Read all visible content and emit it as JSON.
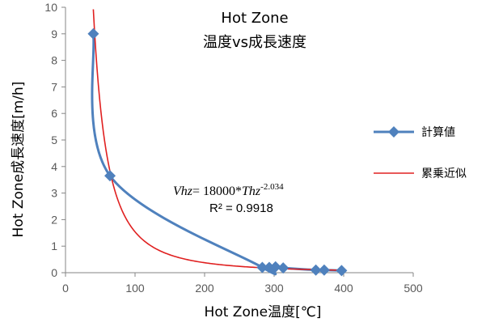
{
  "chart_data": {
    "type": "scatter",
    "title_line1": "Hot Zone",
    "title_line2": "温度vs成長速度",
    "xlabel": "Hot Zone温度[℃]",
    "ylabel": "Hot Zone成長速度[m/h]",
    "xlim": [
      0,
      500
    ],
    "ylim": [
      0,
      10
    ],
    "x_ticks": [
      "0",
      "100",
      "200",
      "300",
      "400",
      "500"
    ],
    "y_ticks": [
      "0",
      "1",
      "2",
      "3",
      "4",
      "5",
      "6",
      "7",
      "8",
      "9",
      "10"
    ],
    "grid": false,
    "legend_position": "right",
    "series": [
      {
        "name": "計算値",
        "style": "smooth-line-with-diamond-markers",
        "color": "#4f81bd",
        "x": [
          40,
          64,
          283,
          293,
          302,
          313,
          360,
          372,
          397
        ],
        "y": [
          9.0,
          3.65,
          0.2,
          0.2,
          0.22,
          0.18,
          0.1,
          0.1,
          0.08
        ]
      },
      {
        "name": "累乗近似",
        "style": "line",
        "color": "#e02020",
        "formula": "18000 * x^-2.034",
        "x_range": [
          40,
          400
        ]
      }
    ],
    "annotation": {
      "equation_parts": [
        "Vhz",
        "= 18000*",
        "Thz",
        "-2.034"
      ],
      "r_squared": "R² = 0.9918"
    }
  }
}
